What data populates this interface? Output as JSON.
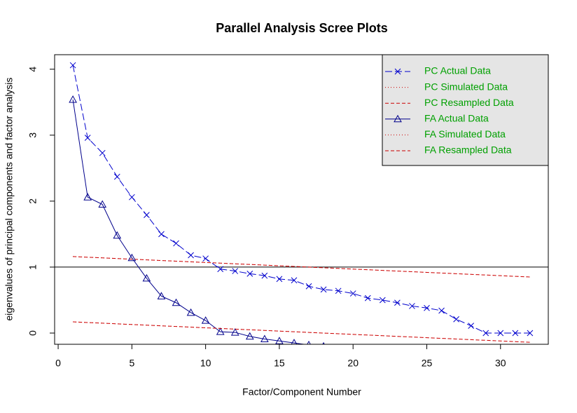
{
  "chart_data": {
    "type": "line",
    "title": "Parallel Analysis Scree Plots",
    "xlabel": "Factor/Component Number",
    "ylabel": "eigenvalues of principal components and factor analysis",
    "x": [
      1,
      2,
      3,
      4,
      5,
      6,
      7,
      8,
      9,
      10,
      11,
      12,
      13,
      14,
      15,
      16,
      17,
      18,
      19,
      20,
      21,
      22,
      23,
      24,
      25,
      26,
      27,
      28,
      29,
      30,
      31,
      32
    ],
    "series": [
      {
        "name": "PC  Actual Data",
        "color": "#0000cd",
        "marker": "x",
        "dash": "10,4",
        "values": [
          4.06,
          2.96,
          2.73,
          2.37,
          2.06,
          1.79,
          1.5,
          1.36,
          1.18,
          1.13,
          0.97,
          0.94,
          0.9,
          0.87,
          0.82,
          0.8,
          0.71,
          0.66,
          0.64,
          0.6,
          0.53,
          0.5,
          0.46,
          0.41,
          0.38,
          0.34,
          0.21,
          0.11,
          0.0,
          0.0,
          0.0,
          0.0
        ]
      },
      {
        "name": "PC  Simulated Data",
        "color": "#cc0000",
        "marker": "none",
        "dash": "1,3",
        "values": [
          1.16,
          1.15,
          1.14,
          1.13,
          1.12,
          1.11,
          1.1,
          1.09,
          1.08,
          1.07,
          1.06,
          1.05,
          1.04,
          1.03,
          1.02,
          1.01,
          1.0,
          0.99,
          0.98,
          0.97,
          0.96,
          0.95,
          0.94,
          0.93,
          0.92,
          0.91,
          0.9,
          0.89,
          0.88,
          0.87,
          0.86,
          0.85
        ]
      },
      {
        "name": "PC  Resampled Data",
        "color": "#cc0000",
        "marker": "none",
        "dash": "5,3",
        "values": [
          1.16,
          1.15,
          1.14,
          1.13,
          1.12,
          1.11,
          1.1,
          1.09,
          1.08,
          1.07,
          1.06,
          1.05,
          1.04,
          1.03,
          1.02,
          1.01,
          1.0,
          0.99,
          0.98,
          0.97,
          0.96,
          0.95,
          0.94,
          0.93,
          0.92,
          0.91,
          0.9,
          0.89,
          0.88,
          0.87,
          0.86,
          0.85
        ]
      },
      {
        "name": "FA  Actual Data",
        "color": "#00008b",
        "marker": "triangle",
        "dash": "none",
        "values": [
          3.54,
          2.06,
          1.95,
          1.48,
          1.14,
          0.83,
          0.56,
          0.46,
          0.31,
          0.19,
          0.02,
          0.01,
          -0.05,
          -0.09,
          -0.12,
          -0.15,
          -0.18,
          -0.2,
          null,
          null,
          null,
          null,
          null,
          null,
          null,
          null,
          null,
          null,
          null,
          null,
          null,
          null
        ]
      },
      {
        "name": "FA  Simulated Data",
        "color": "#cc0000",
        "marker": "none",
        "dash": "1,3",
        "values": [
          0.17,
          0.16,
          0.15,
          0.14,
          0.13,
          0.12,
          0.11,
          0.1,
          0.09,
          0.08,
          0.07,
          0.06,
          0.05,
          0.04,
          0.03,
          0.02,
          0.01,
          0.0,
          -0.01,
          -0.02,
          -0.03,
          -0.04,
          -0.05,
          -0.06,
          -0.07,
          -0.08,
          -0.09,
          -0.1,
          -0.11,
          -0.12,
          -0.13,
          -0.14
        ]
      },
      {
        "name": "FA  Resampled Data",
        "color": "#cc0000",
        "marker": "none",
        "dash": "5,3",
        "values": [
          0.17,
          0.16,
          0.15,
          0.14,
          0.13,
          0.12,
          0.11,
          0.1,
          0.09,
          0.08,
          0.07,
          0.06,
          0.05,
          0.04,
          0.03,
          0.02,
          0.01,
          0.0,
          -0.01,
          -0.02,
          -0.03,
          -0.04,
          -0.05,
          -0.06,
          -0.07,
          -0.08,
          -0.09,
          -0.1,
          -0.11,
          -0.12,
          -0.13,
          -0.14
        ]
      }
    ],
    "hline": 1,
    "xlim": [
      -0.24,
      33.24
    ],
    "ylim": [
      -0.17,
      4.22
    ],
    "xticks": [
      0,
      5,
      10,
      15,
      20,
      25,
      30
    ],
    "yticks": [
      0,
      1,
      2,
      3,
      4
    ],
    "legend": "top-right",
    "legend_background": "#e5e5e5"
  }
}
